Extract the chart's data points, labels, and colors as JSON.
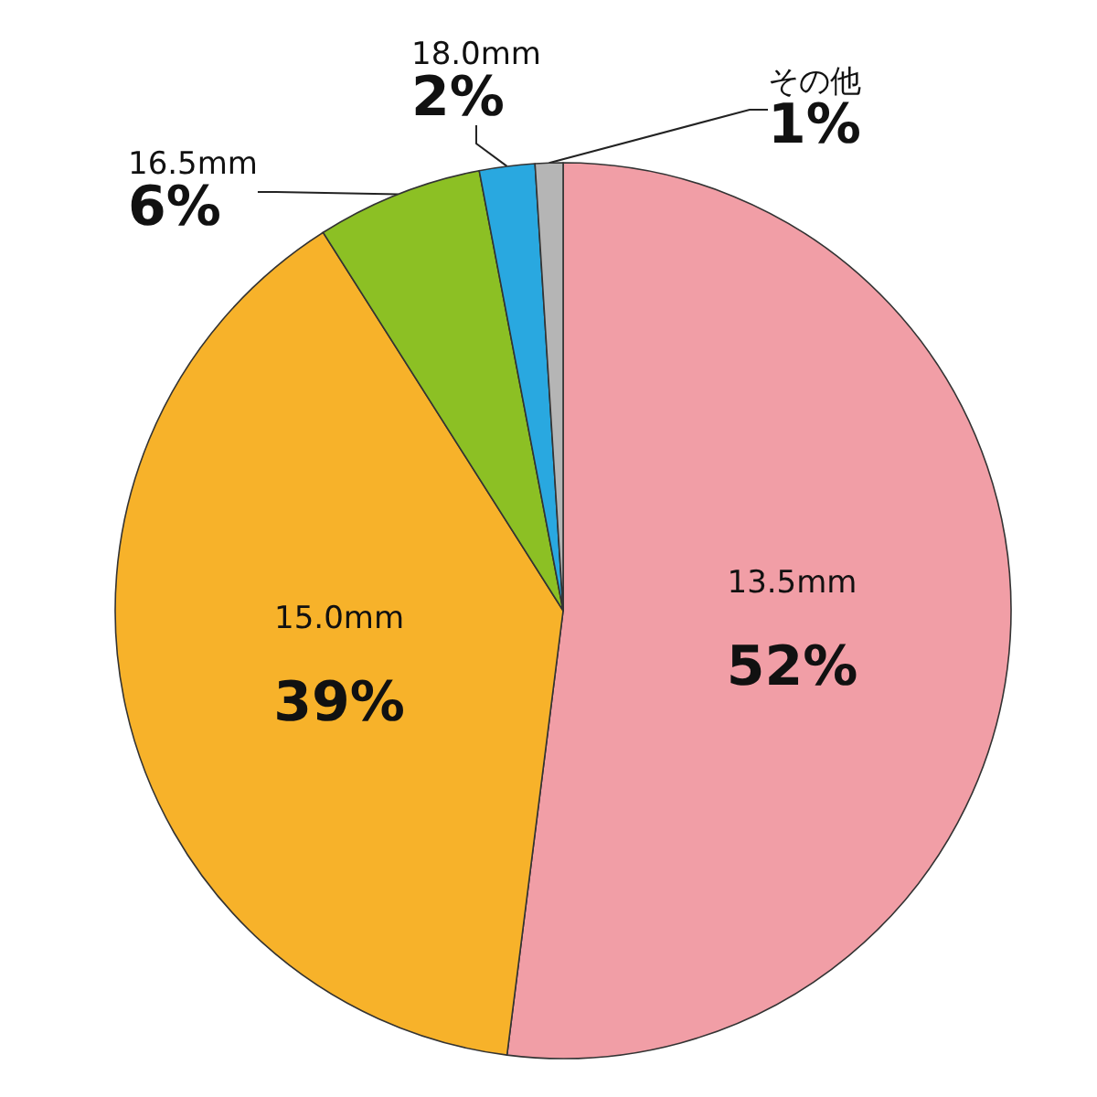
{
  "chart_data": {
    "type": "pie",
    "categories": [
      "13.5mm",
      "15.0mm",
      "16.5mm",
      "18.0mm",
      "その他"
    ],
    "values": [
      52,
      39,
      6,
      2,
      1
    ],
    "value_labels": [
      "52%",
      "39%",
      "6%",
      "2%",
      "1%"
    ],
    "colors": [
      "#f19ea6",
      "#f7b22a",
      "#8cc024",
      "#29a8e0",
      "#b5b5b5"
    ],
    "legend": false
  }
}
